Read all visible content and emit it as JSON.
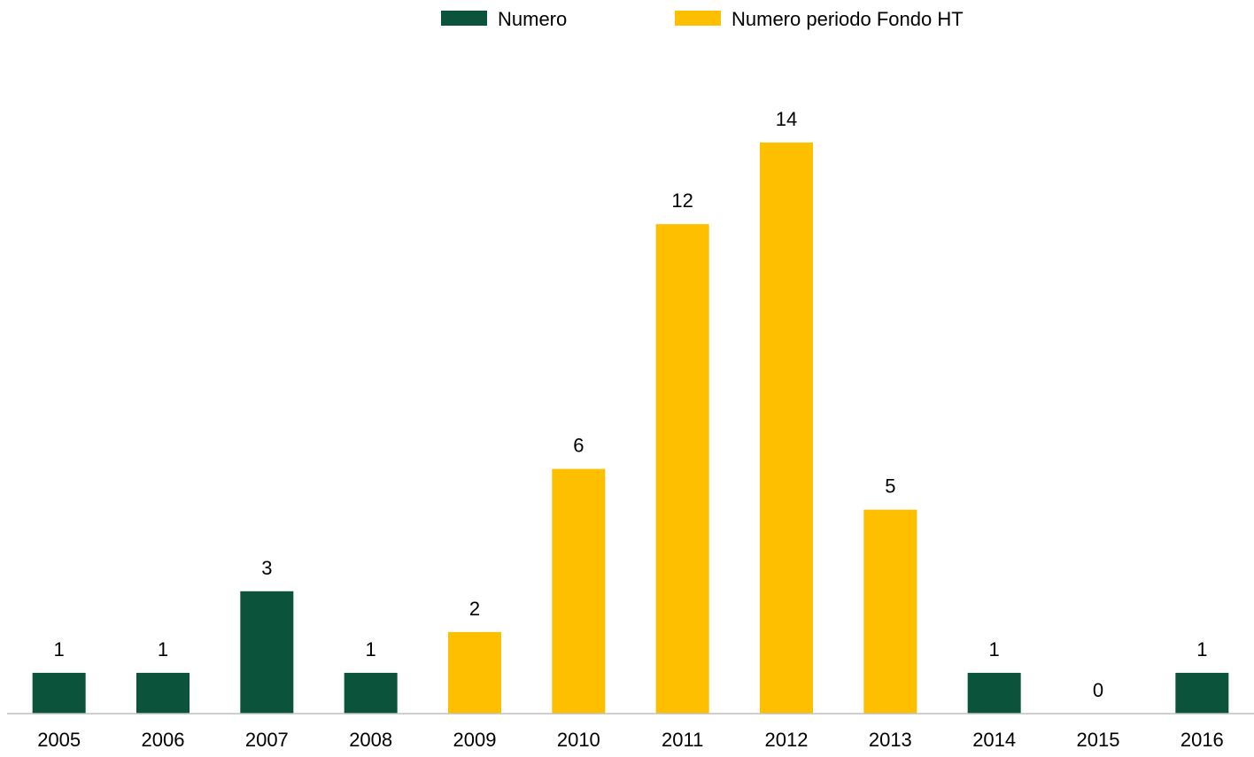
{
  "chart_data": {
    "type": "bar",
    "categories": [
      "2005",
      "2006",
      "2007",
      "2008",
      "2009",
      "2010",
      "2011",
      "2012",
      "2013",
      "2014",
      "2015",
      "2016"
    ],
    "values": [
      1,
      1,
      3,
      1,
      2,
      6,
      12,
      14,
      5,
      1,
      0,
      1
    ],
    "series": [
      {
        "name": "Numero",
        "color": "#0b543b",
        "values": [
          1,
          1,
          3,
          1,
          null,
          null,
          null,
          null,
          null,
          1,
          0,
          1
        ]
      },
      {
        "name": "Numero periodo Fondo HT",
        "color": "#fdbf00",
        "values": [
          null,
          null,
          null,
          null,
          2,
          6,
          12,
          14,
          5,
          null,
          null,
          null
        ]
      }
    ],
    "data_labels": [
      "1",
      "1",
      "3",
      "1",
      "2",
      "6",
      "12",
      "14",
      "5",
      "1",
      "0",
      "1"
    ],
    "title": "",
    "xlabel": "",
    "ylabel": "",
    "ylim": [
      0,
      14
    ],
    "grid": false,
    "legend_position": "top-center",
    "axis_color": "#bfbfbf"
  }
}
